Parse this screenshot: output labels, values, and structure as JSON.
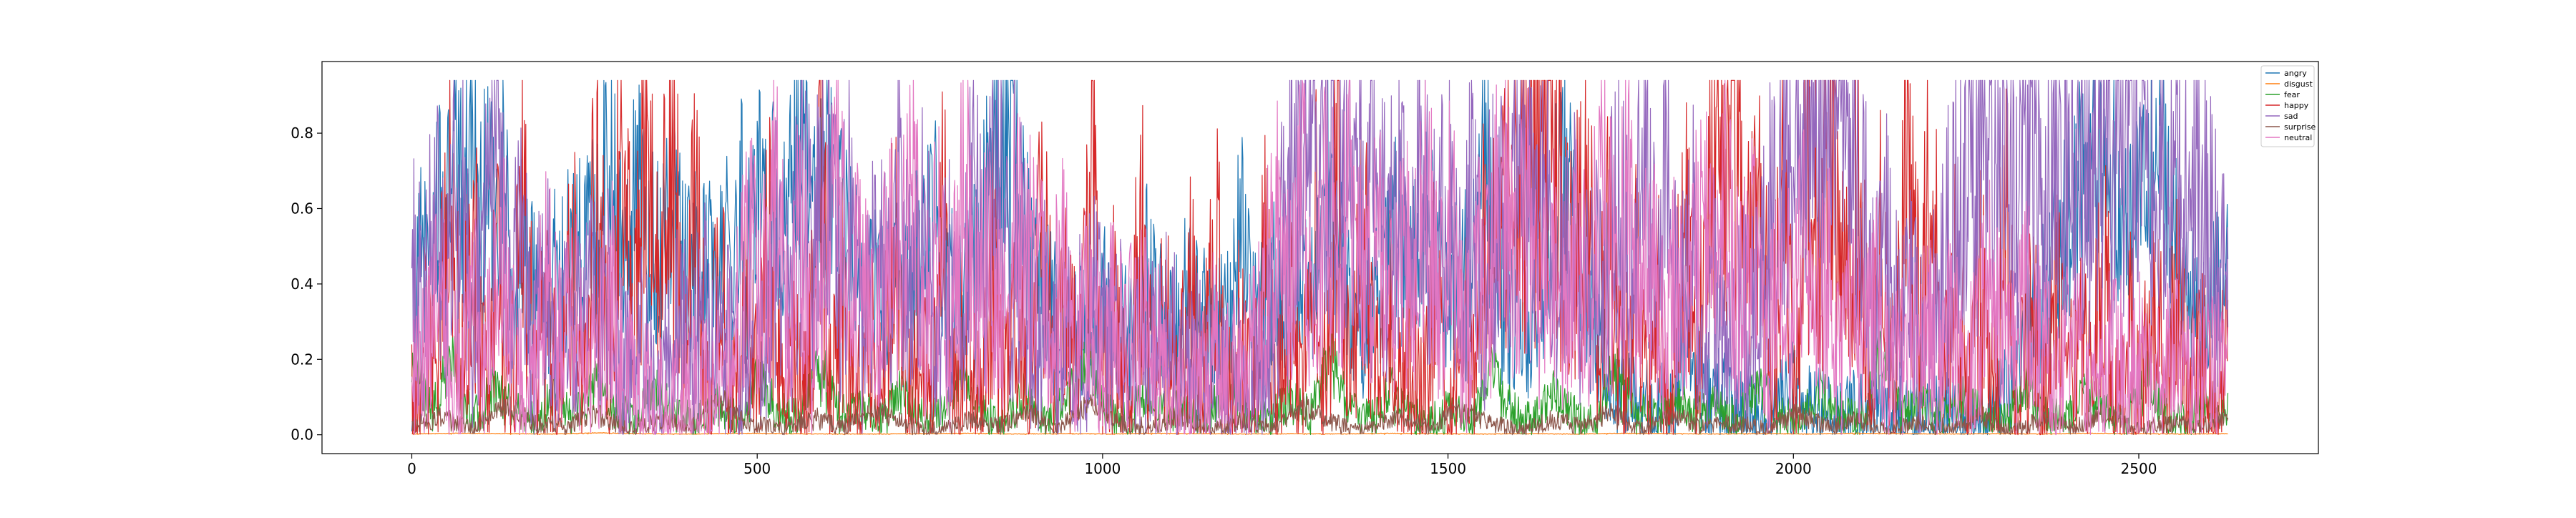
{
  "chart_data": {
    "type": "line",
    "title": "",
    "xlabel": "",
    "ylabel": "",
    "xlim": [
      -130,
      2760
    ],
    "ylim": [
      -0.05,
      0.99
    ],
    "x_ticks": [
      0,
      500,
      1000,
      1500,
      2000,
      2500
    ],
    "x_tick_labels": [
      "0",
      "500",
      "1000",
      "1500",
      "2000",
      "2500"
    ],
    "y_ticks": [
      0.0,
      0.2,
      0.4,
      0.6,
      0.8
    ],
    "y_tick_labels": [
      "0.0",
      "0.2",
      "0.4",
      "0.6",
      "0.8"
    ],
    "grid": false,
    "legend_position": "upper-right",
    "n_points": 2630,
    "series": [
      {
        "name": "angry",
        "color": "#1f77b4",
        "values": [
          0.12,
          0.52,
          0.43,
          0.62,
          0.55,
          0.78,
          0.62,
          0.85,
          0.58,
          0.72,
          0.46,
          0.72,
          0.35,
          0.54,
          0.42,
          0.38,
          0.32,
          0.46,
          0.4,
          0.55,
          0.62,
          0.52,
          0.58,
          0.78,
          0.65,
          0.52,
          0.6,
          0.68,
          0.55,
          0.48,
          0.58,
          0.6,
          0.52,
          0.44,
          0.5,
          0.48,
          0.4,
          0.56,
          0.42,
          0.62,
          0.48,
          0.7,
          0.52,
          0.66,
          0.55,
          0.72,
          0.82,
          0.6,
          0.58,
          0.7,
          0.62,
          0.55,
          0.5,
          0.45,
          0.4,
          0.38,
          0.36,
          0.4,
          0.44,
          0.45,
          0.5,
          0.55,
          0.58,
          0.45,
          0.4,
          0.35,
          0.5,
          0.46,
          0.62,
          0.7,
          0.78,
          0.88,
          0.64,
          0.48,
          0.4,
          0.34,
          0.38,
          0.3,
          0.33,
          0.3,
          0.25,
          0.2,
          0.35,
          0.3,
          0.28,
          0.25,
          0.3,
          0.45,
          0.34,
          0.3,
          0.25,
          0.38,
          0.42,
          0.35,
          0.3,
          0.28,
          0.32,
          0.3,
          0.6,
          0.4,
          0.32,
          0.34,
          0.42,
          0.36,
          0.34,
          0.38,
          0.44,
          0.4,
          0.78,
          0.62,
          0.48,
          0.35,
          0.3,
          0.25,
          0.38,
          0.4,
          0.48,
          0.62,
          0.42,
          0.5,
          0.56,
          0.5,
          0.46,
          0.42,
          0.4,
          0.44,
          0.48,
          0.9,
          0.45,
          0.36,
          0.32,
          0.3,
          0.28,
          0.32,
          0.4,
          0.56,
          0.68,
          0.72,
          0.52,
          0.4,
          0.35,
          0.2,
          0.15,
          0.1,
          0.12,
          0.08,
          0.1,
          0.06,
          0.08,
          0.05,
          0.2,
          0.3,
          0.18,
          0.12,
          0.08,
          0.1,
          0.06,
          0.05,
          0.04,
          0.03,
          0.02,
          0.05,
          0.08,
          0.12,
          0.1,
          0.08,
          0.05,
          0.06,
          0.04,
          0.03,
          0.05,
          0.06,
          0.04,
          0.08,
          0.06,
          0.05,
          0.04,
          0.03,
          0.02,
          0.03,
          0.04,
          0.05,
          0.06,
          0.03,
          0.02,
          0.02,
          0.03,
          0.05,
          0.08,
          0.12,
          0.18,
          0.25,
          0.3,
          0.35,
          0.42,
          0.5,
          0.56,
          0.62,
          0.7,
          0.74,
          0.78,
          0.7,
          0.62,
          0.55,
          0.58,
          0.68,
          0.75,
          0.8,
          0.6,
          0.48,
          0.42,
          0.35,
          0.3,
          0.35,
          0.4,
          0.45
        ]
      },
      {
        "name": "disgust",
        "color": "#ff7f0e",
        "values": [
          0.002,
          0.004,
          0.003,
          0.002,
          0.005,
          0.003,
          0.002,
          0.004,
          0.003,
          0.002,
          0.002,
          0.003,
          0.004,
          0.002,
          0.003,
          0.002,
          0.004,
          0.003,
          0.002,
          0.003,
          0.002,
          0.004,
          0.003,
          0.002,
          0.003,
          0.002,
          0.004,
          0.003,
          0.002,
          0.003,
          0.002,
          0.004,
          0.003,
          0.002,
          0.003,
          0.002,
          0.004,
          0.003,
          0.002,
          0.003
        ]
      },
      {
        "name": "fear",
        "color": "#2ca02c",
        "values": [
          0.18,
          0.06,
          0.22,
          0.04,
          0.12,
          0.08,
          0.03,
          0.1,
          0.05,
          0.14,
          0.06,
          0.04,
          0.12,
          0.05,
          0.03,
          0.08,
          0.04,
          0.15,
          0.06,
          0.04,
          0.22,
          0.05,
          0.08,
          0.03,
          0.12,
          0.04,
          0.06,
          0.18,
          0.05,
          0.03,
          0.1,
          0.04,
          0.08,
          0.2,
          0.06,
          0.03,
          0.12,
          0.05,
          0.08,
          0.04,
          0.15,
          0.06,
          0.03,
          0.1,
          0.05,
          0.22,
          0.06,
          0.04,
          0.12,
          0.05,
          0.03,
          0.08,
          0.04,
          0.18,
          0.06,
          0.04,
          0.12,
          0.05,
          0.03,
          0.2,
          0.06,
          0.04,
          0.1,
          0.05,
          0.08,
          0.03,
          0.15,
          0.05,
          0.04,
          0.12,
          0.06,
          0.03,
          0.22,
          0.05,
          0.08,
          0.04,
          0.1,
          0.05,
          0.03,
          0.14,
          0.05,
          0.04,
          0.12,
          0.06,
          0.03,
          0.18,
          0.05,
          0.04,
          0.1,
          0.06
        ]
      },
      {
        "name": "happy",
        "color": "#d62728",
        "values": [
          0.05,
          0.35,
          0.1,
          0.68,
          0.2,
          0.55,
          0.12,
          0.4,
          0.08,
          0.62,
          0.15,
          0.3,
          0.05,
          0.48,
          0.1,
          0.72,
          0.18,
          0.85,
          0.25,
          0.78,
          0.4,
          0.9,
          0.3,
          0.6,
          0.12,
          0.45,
          0.08,
          0.32,
          0.1,
          0.55,
          0.05,
          0.22,
          0.08,
          0.75,
          0.12,
          0.4,
          0.06,
          0.3,
          0.1,
          0.58,
          0.05,
          0.25,
          0.12,
          0.65,
          0.08,
          0.35,
          0.05,
          0.48,
          0.1,
          0.28,
          0.06,
          0.62,
          0.12,
          0.4,
          0.08,
          0.7,
          0.1,
          0.35,
          0.05,
          0.55,
          0.12,
          0.3,
          0.08,
          0.45,
          0.05,
          0.6,
          0.1,
          0.25,
          0.06,
          0.5,
          0.12,
          0.38,
          0.05,
          0.65,
          0.1,
          0.78,
          0.08,
          0.55,
          0.12,
          0.4,
          0.06,
          0.28,
          0.1,
          0.45,
          0.05,
          0.35,
          0.12,
          0.58,
          0.4,
          0.7,
          0.55,
          0.82,
          0.88,
          0.6,
          0.45,
          0.7,
          0.3,
          0.55,
          0.12,
          0.4,
          0.08,
          0.35,
          0.05,
          0.6,
          0.1,
          0.78,
          0.92,
          0.85,
          0.4,
          0.7,
          0.15,
          0.65,
          0.08,
          0.82,
          0.55,
          0.9,
          0.3,
          0.75,
          0.1,
          0.6,
          0.05,
          0.85,
          0.3,
          0.72,
          0.1,
          0.5,
          0.05,
          0.4,
          0.1,
          0.6,
          0.05,
          0.35,
          0.12,
          0.45,
          0.08,
          0.25,
          0.1,
          0.55,
          0.05,
          0.3,
          0.12,
          0.42,
          0.08,
          0.38,
          0.1,
          0.2,
          0.05,
          0.3
        ]
      },
      {
        "name": "sad",
        "color": "#9467bd",
        "values": [
          0.45,
          0.3,
          0.62,
          0.4,
          0.75,
          0.28,
          0.55,
          0.8,
          0.35,
          0.5,
          0.22,
          0.4,
          0.18,
          0.3,
          0.25,
          0.42,
          0.35,
          0.2,
          0.15,
          0.25,
          0.1,
          0.18,
          0.3,
          0.22,
          0.35,
          0.2,
          0.28,
          0.15,
          0.4,
          0.25,
          0.55,
          0.3,
          0.65,
          0.45,
          0.82,
          0.4,
          0.6,
          0.25,
          0.5,
          0.35,
          0.7,
          0.3,
          0.55,
          0.2,
          0.45,
          0.3,
          0.62,
          0.4,
          0.75,
          0.35,
          0.5,
          0.25,
          0.4,
          0.2,
          0.3,
          0.25,
          0.35,
          0.2,
          0.28,
          0.15,
          0.25,
          0.2,
          0.3,
          0.18,
          0.22,
          0.15,
          0.25,
          0.1,
          0.2,
          0.12,
          0.18,
          0.4,
          0.65,
          0.8,
          0.7,
          0.85,
          0.6,
          0.78,
          0.55,
          0.72,
          0.45,
          0.68,
          0.5,
          0.82,
          0.4,
          0.7,
          0.35,
          0.6,
          0.3,
          0.75,
          0.4,
          0.88,
          0.55,
          0.72,
          0.35,
          0.6,
          0.3,
          0.5,
          0.4,
          0.65,
          0.35,
          0.8,
          0.45,
          0.7,
          0.3,
          0.55,
          0.25,
          0.4,
          0.2,
          0.35,
          0.3,
          0.45,
          0.7,
          0.85,
          0.9,
          0.88,
          0.86,
          0.9,
          0.84,
          0.6,
          0.3,
          0.5,
          0.25,
          0.4,
          0.2,
          0.35,
          0.55,
          0.75,
          0.9,
          0.8,
          0.62,
          0.88,
          0.7,
          0.85,
          0.65,
          0.9,
          0.72,
          0.86,
          0.6,
          0.84,
          0.7,
          0.8,
          0.65,
          0.78,
          0.55,
          0.76,
          0.6,
          0.72,
          0.45,
          0.55
        ]
      },
      {
        "name": "surprise",
        "color": "#8c564b",
        "values": [
          0.02,
          0.05,
          0.01,
          0.08,
          0.03,
          0.02,
          0.06,
          0.01,
          0.04,
          0.02,
          0.1,
          0.03,
          0.01,
          0.05,
          0.02,
          0.07,
          0.03,
          0.01,
          0.04,
          0.02,
          0.06,
          0.01,
          0.09,
          0.03,
          0.02,
          0.05,
          0.01,
          0.04,
          0.02,
          0.08,
          0.03,
          0.01,
          0.05,
          0.02,
          0.07,
          0.03,
          0.01,
          0.04,
          0.02,
          0.06,
          0.01,
          0.05,
          0.02,
          0.03,
          0.01,
          0.06,
          0.02,
          0.04,
          0.01,
          0.03,
          0.02,
          0.05,
          0.01,
          0.04,
          0.02,
          0.06,
          0.01,
          0.03,
          0.02,
          0.05
        ]
      },
      {
        "name": "neutral",
        "color": "#e377c2",
        "values": [
          0.3,
          0.15,
          0.42,
          0.22,
          0.1,
          0.35,
          0.18,
          0.5,
          0.25,
          0.12,
          0.3,
          0.45,
          0.2,
          0.35,
          0.15,
          0.28,
          0.4,
          0.18,
          0.1,
          0.12,
          0.08,
          0.1,
          0.15,
          0.12,
          0.1,
          0.18,
          0.3,
          0.5,
          0.4,
          0.65,
          0.3,
          0.55,
          0.2,
          0.42,
          0.6,
          0.35,
          0.48,
          0.25,
          0.58,
          0.4,
          0.65,
          0.3,
          0.5,
          0.22,
          0.7,
          0.35,
          0.45,
          0.28,
          0.62,
          0.4,
          0.55,
          0.3,
          0.45,
          0.2,
          0.38,
          0.25,
          0.3,
          0.22,
          0.35,
          0.25,
          0.2,
          0.15,
          0.12,
          0.1,
          0.25,
          0.18,
          0.15,
          0.2,
          0.35,
          0.55,
          0.4,
          0.7,
          0.3,
          0.62,
          0.45,
          0.75,
          0.35,
          0.55,
          0.28,
          0.5,
          0.4,
          0.65,
          0.3,
          0.58,
          0.2,
          0.45,
          0.35,
          0.72,
          0.4,
          0.6,
          0.3,
          0.55,
          0.25,
          0.48,
          0.35,
          0.7,
          0.45,
          0.62,
          0.3,
          0.5,
          0.25,
          0.42,
          0.35,
          0.58,
          0.4,
          0.65,
          0.3,
          0.55,
          0.2,
          0.4,
          0.35,
          0.5,
          0.25,
          0.45,
          0.18,
          0.3,
          0.25,
          0.4,
          0.15,
          0.22,
          0.35,
          0.28,
          0.2,
          0.3,
          0.15,
          0.25,
          0.4,
          0.3,
          0.2,
          0.35,
          0.25,
          0.15,
          0.2,
          0.3,
          0.1,
          0.18,
          0.25,
          0.15,
          0.2,
          0.12,
          0.18,
          0.25,
          0.1,
          0.15,
          0.2,
          0.12
        ]
      }
    ]
  }
}
